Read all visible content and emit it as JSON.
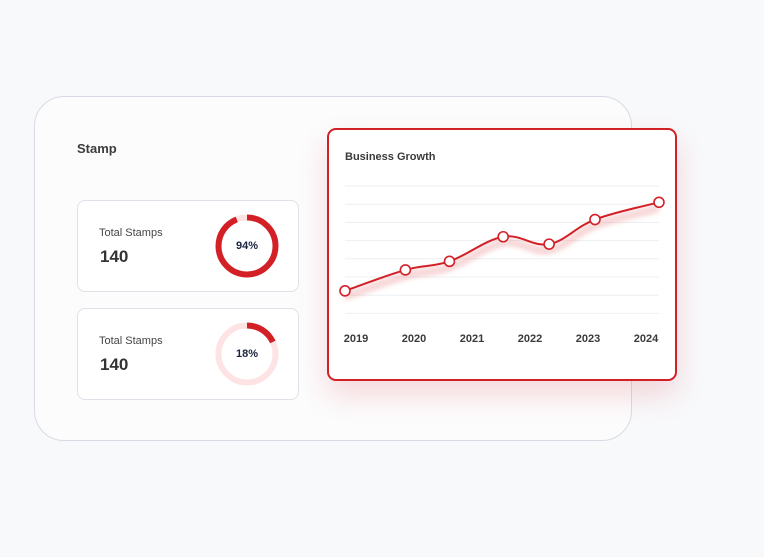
{
  "stamp_panel": {
    "title": "Stamp",
    "cards": [
      {
        "label": "Total Stamps",
        "value": "140",
        "percent_label": "94%",
        "percent": 94
      },
      {
        "label": "Total Stamps",
        "value": "140",
        "percent_label": "18%",
        "percent": 18
      }
    ]
  },
  "colors": {
    "accent": "#d32027",
    "ring_track_light": "#fde3e3",
    "grid": "#eeeff3"
  },
  "chart_data": {
    "type": "line",
    "title": "Business Growth",
    "categories": [
      "2019",
      "2020",
      "2021",
      "2022",
      "2023",
      "2024"
    ],
    "x": [
      2019,
      2020,
      2020.73,
      2021.62,
      2022.38,
      2023.14,
      2024.2
    ],
    "series": [
      {
        "values": [
          18,
          35,
          42,
          62,
          56,
          76,
          90
        ]
      }
    ],
    "ylim": [
      0,
      100
    ],
    "grid": true,
    "xlabel": "",
    "ylabel": ""
  }
}
